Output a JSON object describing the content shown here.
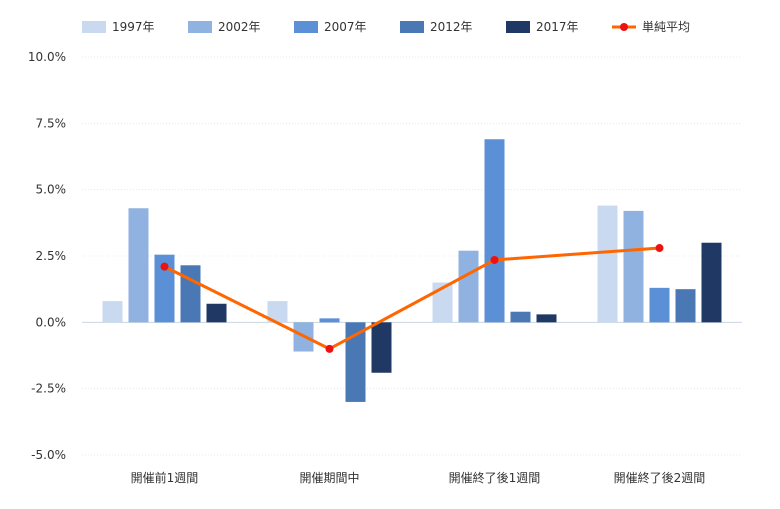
{
  "chart_data": {
    "type": "bar",
    "categories": [
      "開催前1週間",
      "開催期間中",
      "開催終了後1週間",
      "開催終了後2週間"
    ],
    "series": [
      {
        "name": "1997年",
        "color": "#c9d9f0",
        "values": [
          0.8,
          0.8,
          1.5,
          4.4
        ]
      },
      {
        "name": "2002年",
        "color": "#8fb2e0",
        "values": [
          4.3,
          -1.1,
          2.7,
          4.2
        ]
      },
      {
        "name": "2007年",
        "color": "#5b8fd6",
        "values": [
          2.55,
          0.15,
          6.9,
          1.3
        ]
      },
      {
        "name": "2012年",
        "color": "#4a78b5",
        "values": [
          2.15,
          -3.0,
          0.4,
          1.25
        ]
      },
      {
        "name": "2017年",
        "color": "#1f3864",
        "values": [
          0.7,
          -1.9,
          0.3,
          3.0
        ]
      }
    ],
    "line_series": {
      "name": "単純平均",
      "color": "#ff6600",
      "marker_color": "#ee1111",
      "values": [
        2.1,
        -1.0,
        2.35,
        2.8
      ]
    },
    "yticks": [
      "10.0%",
      "7.5%",
      "5.0%",
      "2.5%",
      "0.0%",
      "-2.5%",
      "-5.0%"
    ],
    "ylim": [
      -5.0,
      10.0
    ],
    "grid": true,
    "legend_position": "top",
    "title": "",
    "xlabel": "",
    "ylabel": ""
  }
}
